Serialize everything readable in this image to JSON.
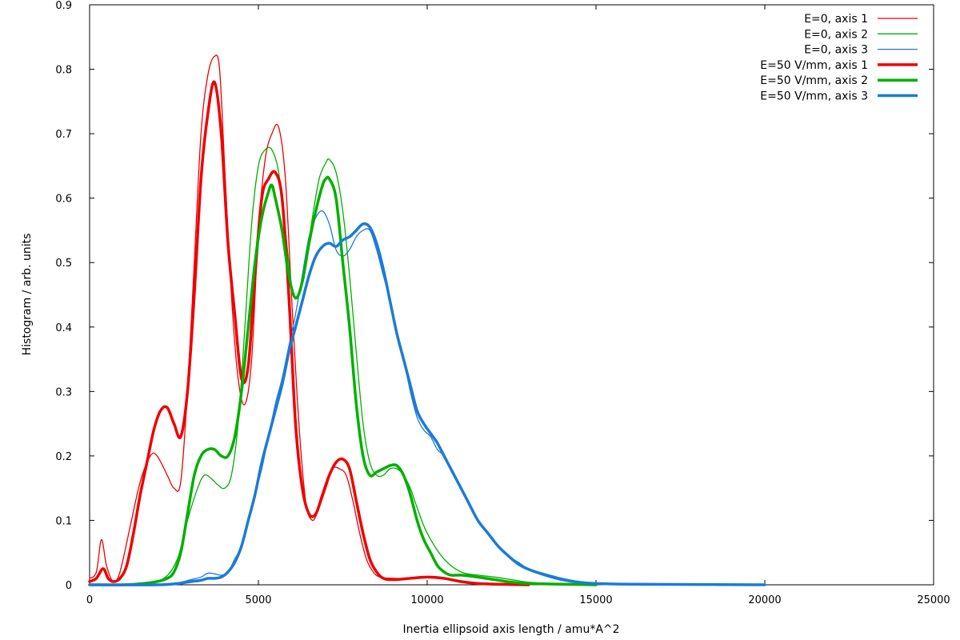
{
  "chart_data": {
    "type": "line",
    "xlabel": "Inertia ellipsoid axis length / amu*A^2",
    "ylabel": "Histogram / arb. units",
    "xlim": [
      0,
      25000
    ],
    "ylim": [
      0,
      0.9
    ],
    "xticks": [
      0,
      5000,
      10000,
      15000,
      20000,
      25000
    ],
    "xtick_labels": [
      "0",
      "5000",
      "10000",
      "15000",
      "20000",
      "25000"
    ],
    "yticks": [
      0,
      0.1,
      0.2,
      0.3,
      0.4,
      0.5,
      0.6,
      0.7,
      0.8,
      0.9
    ],
    "ytick_labels": [
      "0",
      "0.1",
      "0.2",
      "0.3",
      "0.4",
      "0.5",
      "0.6",
      "0.7",
      "0.8",
      "0.9"
    ],
    "grid": false,
    "legend_position": "top-right",
    "series": [
      {
        "name": "E=0, axis 1",
        "color": "#ee0000",
        "style": "thin",
        "x": [
          0,
          200,
          350,
          500,
          700,
          900,
          1200,
          1500,
          1800,
          2000,
          2300,
          2500,
          2700,
          2900,
          3100,
          3300,
          3500,
          3700,
          3850,
          4000,
          4200,
          4400,
          4600,
          4800,
          5000,
          5200,
          5400,
          5600,
          5800,
          6000,
          6200,
          6400,
          6600,
          6800,
          7000,
          7200,
          7400,
          7600,
          7800,
          8000,
          8200,
          8400,
          8600,
          9000,
          9500,
          10000,
          10500,
          11000,
          12000,
          13000
        ],
        "values": [
          0.01,
          0.02,
          0.07,
          0.03,
          0.005,
          0.02,
          0.09,
          0.16,
          0.2,
          0.2,
          0.17,
          0.15,
          0.16,
          0.3,
          0.5,
          0.7,
          0.79,
          0.82,
          0.8,
          0.65,
          0.45,
          0.32,
          0.28,
          0.35,
          0.55,
          0.66,
          0.7,
          0.71,
          0.63,
          0.43,
          0.25,
          0.13,
          0.1,
          0.12,
          0.15,
          0.18,
          0.18,
          0.17,
          0.13,
          0.08,
          0.04,
          0.02,
          0.012,
          0.01,
          0.01,
          0.012,
          0.01,
          0.005,
          0.001,
          0
        ]
      },
      {
        "name": "E=0, axis 2",
        "color": "#00b000",
        "style": "thin",
        "x": [
          0,
          1000,
          1600,
          2200,
          2600,
          2900,
          3200,
          3400,
          3600,
          3800,
          4000,
          4200,
          4400,
          4600,
          4800,
          5000,
          5200,
          5400,
          5600,
          5800,
          6000,
          6200,
          6400,
          6600,
          6800,
          7000,
          7100,
          7300,
          7500,
          7700,
          7900,
          8100,
          8300,
          8500,
          8700,
          8900,
          9100,
          9300,
          9500,
          9700,
          10000,
          10500,
          11000,
          11500,
          12000,
          12500,
          13000,
          14000,
          15000
        ],
        "values": [
          0,
          0,
          0.003,
          0.01,
          0.04,
          0.1,
          0.15,
          0.17,
          0.165,
          0.155,
          0.15,
          0.17,
          0.25,
          0.4,
          0.56,
          0.65,
          0.675,
          0.675,
          0.64,
          0.55,
          0.46,
          0.45,
          0.5,
          0.57,
          0.63,
          0.655,
          0.66,
          0.64,
          0.58,
          0.48,
          0.36,
          0.25,
          0.19,
          0.17,
          0.17,
          0.18,
          0.18,
          0.17,
          0.15,
          0.12,
          0.08,
          0.04,
          0.02,
          0.015,
          0.012,
          0.008,
          0.004,
          0.001,
          0
        ]
      },
      {
        "name": "E=0, axis 3",
        "color": "#1c7bd6",
        "style": "thin",
        "x": [
          0,
          2000,
          2600,
          3000,
          3300,
          3500,
          3700,
          3900,
          4100,
          4300,
          4500,
          4700,
          4900,
          5100,
          5300,
          5500,
          5700,
          5900,
          6100,
          6300,
          6500,
          6700,
          6900,
          7100,
          7300,
          7500,
          7700,
          7900,
          8100,
          8300,
          8500,
          8700,
          8900,
          9100,
          9300,
          9500,
          9700,
          9900,
          10100,
          10300,
          10500,
          10700,
          10900,
          11200,
          11500,
          11800,
          12100,
          12400,
          12700,
          13000,
          13500,
          14000,
          14500,
          15000,
          16000,
          18000,
          20000
        ],
        "values": [
          0,
          0,
          0.003,
          0.008,
          0.012,
          0.018,
          0.017,
          0.015,
          0.02,
          0.04,
          0.06,
          0.1,
          0.14,
          0.18,
          0.23,
          0.28,
          0.32,
          0.37,
          0.42,
          0.48,
          0.54,
          0.57,
          0.58,
          0.56,
          0.52,
          0.51,
          0.52,
          0.54,
          0.55,
          0.55,
          0.52,
          0.48,
          0.44,
          0.39,
          0.35,
          0.3,
          0.26,
          0.24,
          0.23,
          0.21,
          0.2,
          0.18,
          0.16,
          0.13,
          0.1,
          0.08,
          0.06,
          0.045,
          0.035,
          0.025,
          0.017,
          0.01,
          0.005,
          0.002,
          0.001,
          0.0005,
          0
        ]
      },
      {
        "name": "E=50 V/mm, axis 1",
        "color": "#ee0000",
        "style": "thick",
        "x": [
          0,
          200,
          400,
          550,
          700,
          900,
          1100,
          1300,
          1500,
          1700,
          1900,
          2100,
          2300,
          2500,
          2700,
          2900,
          3100,
          3300,
          3500,
          3700,
          3900,
          4100,
          4300,
          4500,
          4700,
          4900,
          5100,
          5300,
          5500,
          5700,
          5900,
          6100,
          6300,
          6500,
          6700,
          6900,
          7100,
          7300,
          7500,
          7700,
          7900,
          8100,
          8300,
          8500,
          8700,
          9000,
          9500,
          10000,
          10500,
          11000,
          11500,
          12000,
          13000
        ],
        "values": [
          0.005,
          0.01,
          0.025,
          0.01,
          0.005,
          0.01,
          0.03,
          0.08,
          0.14,
          0.19,
          0.24,
          0.27,
          0.275,
          0.25,
          0.23,
          0.3,
          0.45,
          0.63,
          0.73,
          0.78,
          0.7,
          0.53,
          0.42,
          0.32,
          0.34,
          0.48,
          0.6,
          0.63,
          0.64,
          0.6,
          0.45,
          0.25,
          0.15,
          0.11,
          0.11,
          0.14,
          0.17,
          0.19,
          0.195,
          0.18,
          0.13,
          0.08,
          0.04,
          0.02,
          0.01,
          0.008,
          0.01,
          0.012,
          0.01,
          0.005,
          0.002,
          0.001,
          0
        ]
      },
      {
        "name": "E=50 V/mm, axis 2",
        "color": "#00b000",
        "style": "thick",
        "x": [
          0,
          1000,
          1600,
          2000,
          2300,
          2500,
          2700,
          2900,
          3100,
          3300,
          3500,
          3700,
          3900,
          4100,
          4300,
          4500,
          4700,
          4900,
          5100,
          5300,
          5400,
          5500,
          5700,
          5900,
          6100,
          6300,
          6500,
          6700,
          6900,
          7000,
          7100,
          7300,
          7500,
          7700,
          7900,
          8100,
          8300,
          8500,
          8700,
          8900,
          9100,
          9300,
          9500,
          9700,
          9900,
          10100,
          10300,
          10500,
          10700,
          11000,
          11500,
          12000,
          12500,
          13000,
          14000,
          15000
        ],
        "values": [
          0,
          0,
          0.002,
          0.005,
          0.01,
          0.02,
          0.05,
          0.11,
          0.17,
          0.2,
          0.21,
          0.21,
          0.2,
          0.2,
          0.23,
          0.3,
          0.4,
          0.5,
          0.57,
          0.61,
          0.62,
          0.6,
          0.55,
          0.48,
          0.445,
          0.47,
          0.53,
          0.58,
          0.62,
          0.63,
          0.63,
          0.6,
          0.5,
          0.4,
          0.28,
          0.2,
          0.17,
          0.175,
          0.18,
          0.185,
          0.185,
          0.17,
          0.14,
          0.1,
          0.07,
          0.05,
          0.03,
          0.02,
          0.015,
          0.015,
          0.012,
          0.008,
          0.004,
          0.002,
          0.001,
          0
        ]
      },
      {
        "name": "E=50 V/mm, axis 3",
        "color": "#1c7bd6",
        "style": "thick",
        "x": [
          0,
          2000,
          2600,
          3000,
          3300,
          3500,
          3700,
          3900,
          4100,
          4300,
          4500,
          4700,
          4900,
          5100,
          5300,
          5500,
          5700,
          5900,
          6100,
          6300,
          6500,
          6700,
          6900,
          7100,
          7300,
          7500,
          7700,
          7900,
          8100,
          8300,
          8500,
          8700,
          8900,
          9100,
          9300,
          9500,
          9700,
          9900,
          10100,
          10300,
          10500,
          10700,
          10900,
          11200,
          11500,
          11800,
          12100,
          12400,
          12700,
          13000,
          13500,
          14000,
          14500,
          15000,
          16000,
          18000,
          20000
        ],
        "values": [
          0,
          0,
          0.002,
          0.005,
          0.007,
          0.01,
          0.01,
          0.012,
          0.02,
          0.035,
          0.06,
          0.1,
          0.14,
          0.19,
          0.23,
          0.27,
          0.31,
          0.36,
          0.4,
          0.44,
          0.48,
          0.51,
          0.525,
          0.53,
          0.525,
          0.535,
          0.54,
          0.55,
          0.56,
          0.555,
          0.53,
          0.49,
          0.44,
          0.39,
          0.35,
          0.31,
          0.27,
          0.25,
          0.235,
          0.22,
          0.2,
          0.18,
          0.16,
          0.13,
          0.1,
          0.08,
          0.06,
          0.045,
          0.032,
          0.024,
          0.015,
          0.008,
          0.004,
          0.002,
          0.001,
          0.0005,
          0
        ]
      }
    ]
  }
}
